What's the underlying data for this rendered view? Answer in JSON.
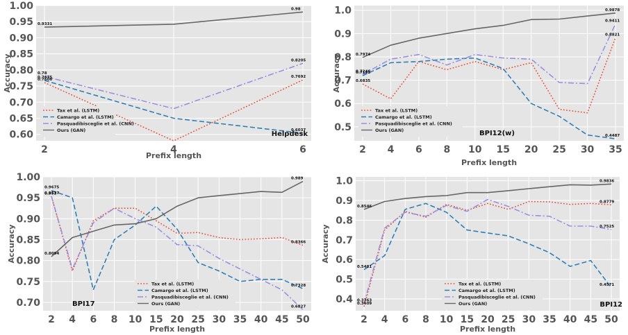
{
  "chart_data": [
    {
      "type": "line",
      "dataset_label": "Helpdesk",
      "xlabel": "Prefix length",
      "ylabel": "Accuracy",
      "categories": [
        "2",
        "4",
        "6"
      ],
      "ylim": [
        0.58,
        1.0
      ],
      "yticks": [
        "1.00",
        "0.95",
        "0.90",
        "0.85",
        "0.80",
        "0.75",
        "0.70",
        "0.65",
        "0.60"
      ],
      "ytick_values": [
        1.0,
        0.95,
        0.9,
        0.85,
        0.8,
        0.75,
        0.7,
        0.65,
        0.6
      ],
      "series": [
        {
          "name": "Tax et al. (LSTM)",
          "color": "#e8553e",
          "dash": "dotted",
          "values": [
            0.7608,
            0.58,
            0.7692
          ]
        },
        {
          "name": "Camargo et al. (LSTM)",
          "color": "#2d7fb8",
          "dash": "dashed",
          "values": [
            0.7675,
            0.65,
            0.6037
          ]
        },
        {
          "name": "Pasquadibisceglie et al. (CNN)",
          "color": "#9b8fe0",
          "dash": "dashdot",
          "values": [
            0.78,
            0.68,
            0.8205
          ]
        },
        {
          "name": "Ours (GAN)",
          "color": "#666666",
          "dash": "solid",
          "values": [
            0.9331,
            0.942,
            0.98
          ]
        }
      ],
      "point_labels": [
        {
          "series": 0,
          "index": 0,
          "text": "0.7608"
        },
        {
          "series": 1,
          "index": 0,
          "text": "0.7675"
        },
        {
          "series": 2,
          "index": 0,
          "text": "0.78"
        },
        {
          "series": 3,
          "index": 0,
          "text": "0.9331"
        },
        {
          "series": 0,
          "index": 2,
          "text": "0.7692"
        },
        {
          "series": 1,
          "index": 2,
          "text": "0.6037"
        },
        {
          "series": 2,
          "index": 2,
          "text": "0.8205"
        },
        {
          "series": 3,
          "index": 2,
          "text": "0.98"
        }
      ],
      "legend_position": "lower-left"
    },
    {
      "type": "line",
      "dataset_label": "BPI12(w)",
      "xlabel": "Prefix length",
      "ylabel": "Accuracy",
      "categories": [
        "2",
        "4",
        "6",
        "8",
        "10",
        "15",
        "20",
        "25",
        "30",
        "35"
      ],
      "ylim": [
        0.44,
        1.02
      ],
      "yticks": [
        "1.0",
        "0.9",
        "0.8",
        "0.7",
        "0.6",
        "0.5"
      ],
      "ytick_values": [
        1.0,
        0.9,
        0.8,
        0.7,
        0.6,
        0.5
      ],
      "series": [
        {
          "name": "Tax et al. (LSTM)",
          "color": "#e8553e",
          "dash": "dotted",
          "values": [
            0.6835,
            0.62,
            0.78,
            0.745,
            0.78,
            0.745,
            0.775,
            0.575,
            0.56,
            0.8821
          ]
        },
        {
          "name": "Camargo et al. (LSTM)",
          "color": "#2d7fb8",
          "dash": "dashed",
          "values": [
            0.7192,
            0.775,
            0.78,
            0.79,
            0.795,
            0.75,
            0.6,
            0.545,
            0.465,
            0.4487
          ]
        },
        {
          "name": "Pasquadibisceglie et al. (CNN)",
          "color": "#9b8fe0",
          "dash": "dashdot",
          "values": [
            0.7246,
            0.79,
            0.81,
            0.765,
            0.81,
            0.795,
            0.79,
            0.69,
            0.685,
            0.9411
          ]
        },
        {
          "name": "Ours (GAN)",
          "color": "#666666",
          "dash": "solid",
          "values": [
            0.7974,
            0.85,
            0.88,
            0.9,
            0.92,
            0.935,
            0.96,
            0.962,
            0.975,
            0.9878
          ]
        }
      ],
      "point_labels": [
        {
          "series": 0,
          "index": 0,
          "text": "0.6835"
        },
        {
          "series": 1,
          "index": 0,
          "text": "0.7192"
        },
        {
          "series": 2,
          "index": 0,
          "text": "0.7246"
        },
        {
          "series": 3,
          "index": 0,
          "text": "0.7974"
        },
        {
          "series": 0,
          "index": 9,
          "text": "0.8821"
        },
        {
          "series": 1,
          "index": 9,
          "text": "0.4487"
        },
        {
          "series": 2,
          "index": 9,
          "text": "0.9411"
        },
        {
          "series": 3,
          "index": 9,
          "text": "0.9878"
        }
      ],
      "legend_position": "lower-left"
    },
    {
      "type": "line",
      "dataset_label": "BPI17",
      "xlabel": "Prefix length",
      "ylabel": "Accuracy",
      "categories": [
        "2",
        "4",
        "6",
        "8",
        "10",
        "15",
        "20",
        "25",
        "30",
        "35",
        "40",
        "45",
        "50"
      ],
      "ylim": [
        0.68,
        1.0
      ],
      "yticks": [
        "1.00",
        "0.95",
        "0.90",
        "0.85",
        "0.80",
        "0.75",
        "0.70"
      ],
      "ytick_values": [
        1.0,
        0.95,
        0.9,
        0.85,
        0.8,
        0.75,
        0.7
      ],
      "series": [
        {
          "name": "Tax et al. (LSTM)",
          "color": "#e8553e",
          "dash": "dotted",
          "values": [
            0.953,
            0.775,
            0.895,
            0.925,
            0.925,
            0.895,
            0.865,
            0.867,
            0.855,
            0.85,
            0.852,
            0.855,
            0.8366
          ]
        },
        {
          "name": "Camargo et al. (LSTM)",
          "color": "#2d7fb8",
          "dash": "dashed",
          "values": [
            0.9675,
            0.95,
            0.73,
            0.85,
            0.885,
            0.93,
            0.875,
            0.795,
            0.775,
            0.75,
            0.755,
            0.755,
            0.7328
          ]
        },
        {
          "name": "Pasquadibisceglie et al. (CNN)",
          "color": "#9b8fe0",
          "dash": "dashdot",
          "values": [
            0.9537,
            0.78,
            0.89,
            0.925,
            0.9,
            0.88,
            0.838,
            0.835,
            0.805,
            0.78,
            0.755,
            0.73,
            0.6827
          ]
        },
        {
          "name": "Ours (GAN)",
          "color": "#666666",
          "dash": "solid",
          "values": [
            0.8094,
            0.855,
            0.87,
            0.885,
            0.888,
            0.9,
            0.93,
            0.95,
            0.955,
            0.96,
            0.965,
            0.963,
            0.989
          ]
        }
      ],
      "point_labels": [
        {
          "series": 1,
          "index": 0,
          "text": "0.9675"
        },
        {
          "series": 0,
          "index": 0,
          "text": "0.953"
        },
        {
          "series": 2,
          "index": 0,
          "text": "0.9537"
        },
        {
          "series": 3,
          "index": 0,
          "text": "0.8094"
        },
        {
          "series": 0,
          "index": 12,
          "text": "0.8366"
        },
        {
          "series": 1,
          "index": 12,
          "text": "0.7328"
        },
        {
          "series": 2,
          "index": 12,
          "text": "0.6827"
        },
        {
          "series": 3,
          "index": 12,
          "text": "0.989"
        }
      ],
      "legend_position": "lower-right"
    },
    {
      "type": "line",
      "dataset_label": "BPI12",
      "xlabel": "Prefix length",
      "ylabel": "Accuracy",
      "categories": [
        "2",
        "4",
        "6",
        "8",
        "10",
        "15",
        "20",
        "25",
        "30",
        "35",
        "40",
        "45",
        "50"
      ],
      "ylim": [
        0.34,
        1.02
      ],
      "yticks": [
        "1.0",
        "0.9",
        "0.8",
        "0.7",
        "0.6",
        "0.5",
        "0.4"
      ],
      "ytick_values": [
        1.0,
        0.9,
        0.8,
        0.7,
        0.6,
        0.5,
        0.4
      ],
      "series": [
        {
          "name": "Tax et al. (LSTM)",
          "color": "#e8553e",
          "dash": "dotted",
          "values": [
            0.3609,
            0.75,
            0.845,
            0.815,
            0.88,
            0.85,
            0.885,
            0.855,
            0.895,
            0.893,
            0.88,
            0.885,
            0.8779
          ]
        },
        {
          "name": "Camargo et al. (LSTM)",
          "color": "#2d7fb8",
          "dash": "dashed",
          "values": [
            0.5481,
            0.62,
            0.855,
            0.885,
            0.84,
            0.75,
            0.735,
            0.72,
            0.68,
            0.635,
            0.565,
            0.595,
            0.4571
          ]
        },
        {
          "name": "Pasquadibisceglie et al. (CNN)",
          "color": "#9b8fe0",
          "dash": "dashdot",
          "values": [
            0.3763,
            0.76,
            0.84,
            0.82,
            0.875,
            0.845,
            0.905,
            0.87,
            0.825,
            0.82,
            0.77,
            0.77,
            0.7525
          ]
        },
        {
          "name": "Ours (GAN)",
          "color": "#666666",
          "dash": "solid",
          "values": [
            0.8546,
            0.895,
            0.91,
            0.92,
            0.925,
            0.94,
            0.94,
            0.95,
            0.96,
            0.97,
            0.98,
            0.978,
            0.9836
          ]
        }
      ],
      "point_labels": [
        {
          "series": 1,
          "index": 0,
          "text": "0.5481"
        },
        {
          "series": 2,
          "index": 0,
          "text": "0.3763"
        },
        {
          "series": 0,
          "index": 0,
          "text": "0.3609"
        },
        {
          "series": 3,
          "index": 0,
          "text": "0.8546"
        },
        {
          "series": 0,
          "index": 12,
          "text": "0.8779"
        },
        {
          "series": 1,
          "index": 12,
          "text": "0.4571"
        },
        {
          "series": 2,
          "index": 12,
          "text": "0.7525"
        },
        {
          "series": 3,
          "index": 12,
          "text": "0.9836"
        }
      ],
      "legend_position": "lower-center"
    }
  ]
}
